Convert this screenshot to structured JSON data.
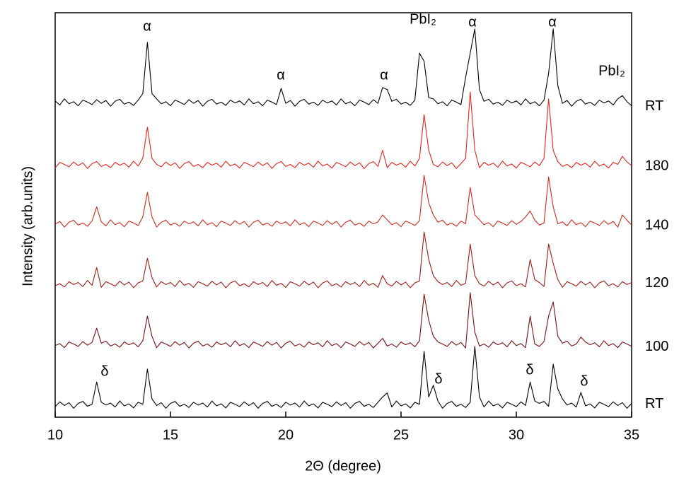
{
  "chart_data": {
    "type": "line",
    "xlabel": "2Θ (degree)",
    "ylabel": "Intensity (arb.units)",
    "xlim": [
      10,
      35
    ],
    "xticks": [
      10,
      15,
      20,
      25,
      30,
      35
    ],
    "ylim": [
      0,
      100
    ],
    "annotations": [
      "α",
      "α",
      "α",
      "PbI₂",
      "α",
      "α",
      "PbI₂",
      "δ",
      "δ",
      "δ",
      "δ"
    ],
    "x": [
      10,
      10.2,
      10.4,
      10.6,
      10.8,
      11,
      11.2,
      11.4,
      11.6,
      11.8,
      12,
      12.2,
      12.4,
      12.6,
      12.8,
      13,
      13.2,
      13.4,
      13.6,
      13.8,
      14,
      14.2,
      14.4,
      14.6,
      14.8,
      15,
      15.2,
      15.4,
      15.6,
      15.8,
      16,
      16.2,
      16.4,
      16.6,
      16.8,
      17,
      17.2,
      17.4,
      17.6,
      17.8,
      18,
      18.2,
      18.4,
      18.6,
      18.8,
      19,
      19.2,
      19.4,
      19.6,
      19.8,
      20,
      20.2,
      20.4,
      20.6,
      20.8,
      21,
      21.2,
      21.4,
      21.6,
      21.8,
      22,
      22.2,
      22.4,
      22.6,
      22.8,
      23,
      23.2,
      23.4,
      23.6,
      23.8,
      24,
      24.2,
      24.4,
      24.6,
      24.8,
      25,
      25.2,
      25.4,
      25.6,
      25.8,
      26,
      26.2,
      26.4,
      26.6,
      26.8,
      27,
      27.2,
      27.4,
      27.6,
      27.8,
      28,
      28.2,
      28.4,
      28.6,
      28.8,
      29,
      29.2,
      29.4,
      29.6,
      29.8,
      30,
      30.2,
      30.4,
      30.6,
      30.8,
      31,
      31.2,
      31.4,
      31.6,
      31.8,
      32,
      32.2,
      32.4,
      32.6,
      32.8,
      33,
      33.2,
      33.4,
      33.6,
      33.8,
      34,
      34.2,
      34.4,
      34.6,
      34.8,
      35
    ],
    "series": [
      {
        "name": "RT",
        "color": "#000000",
        "values": [
          78.2,
          77.2,
          78.7,
          77.5,
          78.0,
          77.0,
          78.4,
          77.9,
          77.3,
          78.5,
          77.6,
          78.3,
          76.9,
          78.1,
          78.6,
          77.4,
          77.9,
          77.1,
          78.4,
          80.0,
          92.7,
          80.0,
          78.7,
          77.5,
          78.0,
          77.0,
          78.4,
          77.9,
          77.3,
          78.5,
          77.6,
          78.3,
          76.9,
          78.1,
          78.6,
          77.4,
          77.9,
          77.1,
          78.4,
          77.7,
          78.2,
          77.2,
          78.7,
          77.5,
          78.0,
          77.0,
          78.4,
          77.9,
          77.3,
          81.3,
          77.6,
          78.3,
          76.9,
          78.1,
          78.6,
          77.4,
          77.9,
          77.1,
          78.4,
          77.7,
          78.2,
          77.2,
          78.7,
          77.5,
          78.0,
          77.0,
          78.4,
          77.9,
          77.3,
          78.5,
          77.6,
          81.5,
          81.0,
          78.1,
          78.6,
          77.4,
          77.9,
          77.1,
          78.4,
          90.0,
          88.0,
          79.0,
          78.7,
          77.5,
          78.0,
          77.0,
          78.4,
          77.9,
          77.3,
          84.0,
          90.0,
          96.0,
          81.0,
          78.1,
          78.6,
          77.4,
          77.9,
          77.1,
          78.4,
          77.7,
          78.2,
          77.2,
          78.7,
          77.5,
          78.0,
          77.0,
          78.4,
          85.0,
          96.0,
          82.0,
          77.6,
          78.3,
          76.9,
          78.1,
          78.6,
          77.4,
          77.9,
          77.1,
          78.4,
          77.7,
          78.2,
          77.2,
          78.7,
          79.5,
          78.0,
          77.0
        ]
      },
      {
        "name": "180",
        "color": "#e8231c",
        "values": [
          61.6,
          63.0,
          62.5,
          61.9,
          63.1,
          62.2,
          62.9,
          61.5,
          62.7,
          63.2,
          62.0,
          62.5,
          61.7,
          63.0,
          62.3,
          62.8,
          61.8,
          63.3,
          62.1,
          64.0,
          71.7,
          64.0,
          62.5,
          61.9,
          63.1,
          62.2,
          62.9,
          61.5,
          62.7,
          63.2,
          62.0,
          62.5,
          61.7,
          63.0,
          62.3,
          62.8,
          61.8,
          63.3,
          62.1,
          62.6,
          61.6,
          63.0,
          62.5,
          61.9,
          63.1,
          62.2,
          62.9,
          61.5,
          62.7,
          63.2,
          62.0,
          62.5,
          61.7,
          63.0,
          62.3,
          62.8,
          61.8,
          63.3,
          62.1,
          62.6,
          61.6,
          63.0,
          62.5,
          61.9,
          63.1,
          62.2,
          62.9,
          61.5,
          62.7,
          63.2,
          62.0,
          66.0,
          61.7,
          63.0,
          62.3,
          62.8,
          61.8,
          63.3,
          62.1,
          64.0,
          74.8,
          66.0,
          62.5,
          61.9,
          63.1,
          62.2,
          62.9,
          61.5,
          62.7,
          64.0,
          80.4,
          66.0,
          61.7,
          63.0,
          62.3,
          62.8,
          61.8,
          63.3,
          62.1,
          62.6,
          61.6,
          63.0,
          62.5,
          61.9,
          63.1,
          62.2,
          64.0,
          78.7,
          66.0,
          63.2,
          62.0,
          62.5,
          61.7,
          63.0,
          62.3,
          62.8,
          61.8,
          63.3,
          62.1,
          62.6,
          61.6,
          63.0,
          62.5,
          64.5,
          63.1,
          62.2
        ]
      },
      {
        "name": "140",
        "color": "#d42a1e",
        "values": [
          47.7,
          48.4,
          47.0,
          48.2,
          48.7,
          47.5,
          48.0,
          47.2,
          48.5,
          52.0,
          48.3,
          47.3,
          48.8,
          47.6,
          48.1,
          47.1,
          48.5,
          48.0,
          47.4,
          49.5,
          55.6,
          49.5,
          47.0,
          48.2,
          48.7,
          47.5,
          48.0,
          47.2,
          48.5,
          47.8,
          48.3,
          47.3,
          48.8,
          47.6,
          48.1,
          47.1,
          48.5,
          48.0,
          47.4,
          48.6,
          47.7,
          48.4,
          47.0,
          48.2,
          48.7,
          47.5,
          48.0,
          47.2,
          48.5,
          47.8,
          48.3,
          47.3,
          48.8,
          47.6,
          48.1,
          47.1,
          48.5,
          48.0,
          47.4,
          48.6,
          47.7,
          48.4,
          47.0,
          48.2,
          48.7,
          47.5,
          48.0,
          47.2,
          48.5,
          47.8,
          48.3,
          50.0,
          48.8,
          47.6,
          48.1,
          47.1,
          48.5,
          48.0,
          47.4,
          48.6,
          59.8,
          53.0,
          50.0,
          48.2,
          48.7,
          47.5,
          48.0,
          47.2,
          48.5,
          47.8,
          56.8,
          50.0,
          48.8,
          47.6,
          48.1,
          47.1,
          48.5,
          48.0,
          47.4,
          48.6,
          47.7,
          48.4,
          49.5,
          51.0,
          48.7,
          47.5,
          48.0,
          59.4,
          52.0,
          47.8,
          48.3,
          47.3,
          48.8,
          47.6,
          48.1,
          47.1,
          48.5,
          48.0,
          47.4,
          48.6,
          47.7,
          48.4,
          47.0,
          50.0,
          48.7,
          47.5
        ]
      },
      {
        "name": "120",
        "color": "#a31a14",
        "values": [
          32.5,
          33.0,
          32.2,
          33.5,
          32.8,
          33.3,
          32.3,
          33.8,
          32.6,
          37.0,
          32.1,
          33.5,
          33.0,
          32.4,
          33.6,
          32.7,
          33.4,
          32.0,
          33.2,
          33.7,
          39.3,
          34.5,
          32.2,
          33.5,
          32.8,
          33.3,
          32.3,
          33.8,
          32.6,
          33.1,
          32.1,
          33.5,
          33.0,
          32.4,
          33.6,
          32.7,
          33.4,
          32.0,
          33.2,
          33.7,
          32.5,
          33.0,
          32.2,
          33.5,
          32.8,
          33.3,
          32.3,
          33.8,
          32.6,
          33.1,
          32.1,
          33.5,
          33.0,
          32.4,
          33.6,
          32.7,
          33.4,
          32.0,
          33.2,
          33.7,
          32.5,
          33.0,
          32.2,
          33.5,
          32.8,
          33.3,
          32.3,
          33.8,
          32.6,
          33.1,
          32.1,
          35.0,
          33.0,
          32.4,
          33.6,
          32.7,
          33.4,
          32.0,
          33.2,
          33.7,
          45.8,
          39.0,
          35.0,
          33.5,
          32.8,
          33.3,
          32.3,
          33.8,
          32.6,
          33.1,
          42.8,
          35.0,
          33.0,
          32.4,
          33.6,
          32.7,
          33.4,
          32.0,
          33.2,
          33.7,
          32.5,
          33.0,
          32.2,
          39.0,
          34.0,
          33.3,
          32.3,
          42.8,
          38.0,
          34.0,
          32.1,
          33.5,
          33.0,
          32.4,
          33.6,
          32.7,
          33.4,
          32.0,
          33.2,
          33.7,
          32.5,
          33.0,
          32.2,
          33.5,
          32.8,
          33.3
        ]
      },
      {
        "name": "100",
        "color": "#7a1010",
        "values": [
          17.7,
          18.2,
          17.2,
          18.6,
          18.1,
          17.5,
          18.7,
          17.8,
          18.5,
          22.0,
          18.3,
          18.8,
          17.6,
          18.1,
          17.3,
          18.6,
          17.9,
          18.4,
          17.4,
          18.9,
          25.0,
          20.0,
          17.2,
          18.6,
          18.1,
          17.5,
          18.7,
          17.8,
          18.5,
          17.1,
          18.3,
          18.8,
          17.6,
          18.1,
          17.3,
          18.6,
          17.9,
          18.4,
          17.4,
          18.9,
          17.7,
          18.2,
          17.2,
          18.6,
          18.1,
          17.5,
          18.7,
          17.8,
          18.5,
          17.1,
          18.3,
          18.8,
          17.6,
          18.1,
          17.3,
          18.6,
          17.9,
          18.4,
          17.4,
          18.9,
          17.7,
          18.2,
          17.2,
          18.6,
          18.1,
          17.5,
          18.7,
          17.8,
          18.5,
          17.1,
          18.3,
          19.5,
          17.6,
          18.1,
          17.3,
          18.6,
          17.9,
          18.4,
          17.4,
          18.9,
          30.4,
          24.0,
          20.0,
          18.6,
          18.1,
          17.5,
          18.7,
          17.8,
          18.5,
          17.1,
          30.8,
          21.0,
          17.6,
          18.1,
          17.3,
          18.6,
          17.9,
          18.4,
          17.4,
          18.9,
          17.7,
          18.2,
          17.2,
          25.0,
          18.1,
          17.5,
          18.7,
          25.0,
          28.5,
          20.0,
          18.3,
          18.8,
          17.6,
          18.1,
          19.8,
          18.6,
          17.9,
          18.4,
          17.4,
          18.9,
          17.7,
          18.2,
          17.2,
          18.6,
          18.1,
          17.5
        ]
      },
      {
        "name": "RT",
        "color": "#000000",
        "values": [
          2.6,
          3.8,
          2.9,
          3.6,
          2.2,
          3.4,
          3.9,
          2.7,
          3.2,
          8.7,
          3.7,
          3.0,
          3.5,
          2.5,
          4.0,
          2.8,
          3.3,
          2.3,
          3.7,
          3.2,
          11.9,
          4.5,
          2.9,
          3.6,
          2.2,
          3.4,
          3.9,
          2.7,
          3.2,
          2.4,
          3.7,
          3.0,
          3.5,
          2.5,
          4.0,
          2.8,
          3.3,
          2.3,
          3.7,
          3.2,
          2.6,
          3.8,
          2.9,
          3.6,
          2.2,
          3.4,
          3.9,
          2.7,
          3.2,
          2.4,
          3.7,
          3.0,
          3.5,
          2.5,
          4.0,
          2.8,
          3.3,
          2.3,
          3.7,
          3.2,
          2.6,
          3.8,
          2.9,
          3.6,
          2.2,
          3.4,
          3.9,
          2.7,
          3.2,
          2.4,
          3.7,
          5.0,
          6.0,
          2.5,
          4.0,
          2.8,
          3.3,
          2.3,
          3.7,
          3.2,
          16.3,
          5.0,
          7.9,
          4.0,
          2.2,
          3.4,
          3.9,
          2.7,
          3.2,
          2.4,
          3.7,
          17.5,
          5.0,
          2.5,
          4.0,
          2.8,
          3.3,
          2.3,
          3.7,
          3.2,
          2.6,
          3.8,
          2.9,
          8.7,
          4.0,
          3.4,
          3.9,
          2.7,
          13.1,
          7.0,
          4.5,
          3.0,
          3.5,
          2.5,
          6.1,
          2.8,
          3.3,
          2.3,
          3.7,
          3.2,
          2.6,
          3.8,
          2.9,
          3.6,
          2.2,
          3.4
        ]
      }
    ]
  }
}
